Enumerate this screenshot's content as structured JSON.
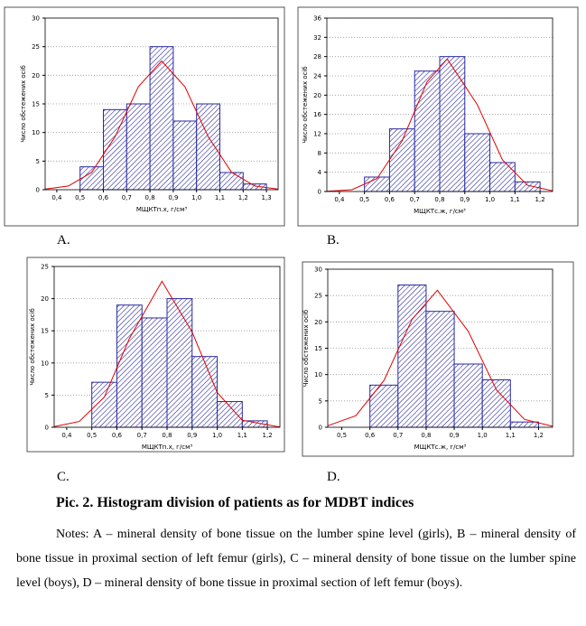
{
  "chart_data": [
    {
      "type": "histogram",
      "label": "A.",
      "ylabel": "Число обстежених осіб",
      "xlabel": "МЩКТп.х, г/см³",
      "bins": [
        0.5,
        0.6,
        0.7,
        0.8,
        0.9,
        1.0,
        1.1,
        1.2,
        1.3
      ],
      "values": [
        4,
        14,
        15,
        25,
        12,
        15,
        3,
        1
      ],
      "color": "#2a2aa0",
      "curve": {
        "color": "#e00000",
        "x": [
          0.35,
          0.45,
          0.55,
          0.65,
          0.75,
          0.85,
          0.95,
          1.05,
          1.15,
          1.25,
          1.35
        ],
        "y": [
          0.09,
          0.64,
          3.05,
          9.25,
          18.0,
          22.5,
          18.0,
          9.25,
          3.05,
          0.64,
          0.09
        ]
      },
      "xlim": [
        0.35,
        1.35
      ],
      "ylim": [
        0,
        30
      ],
      "xticks": [
        {
          "value": 0.4,
          "label": "0,4"
        },
        {
          "value": 0.5,
          "label": "0,5"
        },
        {
          "value": 0.6,
          "label": "0,6"
        },
        {
          "value": 0.7,
          "label": "0,7"
        },
        {
          "value": 0.8,
          "label": "0,8"
        },
        {
          "value": 0.9,
          "label": "0,9"
        },
        {
          "value": 1.0,
          "label": "1,0"
        },
        {
          "value": 1.1,
          "label": "1,1"
        },
        {
          "value": 1.2,
          "label": "1,2"
        },
        {
          "value": 1.3,
          "label": "1,3"
        }
      ],
      "yticks": [
        0,
        5,
        10,
        15,
        20,
        25,
        30
      ],
      "grid": true
    },
    {
      "type": "histogram",
      "label": "B.",
      "ylabel": "Число обстежених осіб",
      "xlabel": "МЩКТс.ж, г/см³",
      "bins": [
        0.5,
        0.6,
        0.7,
        0.8,
        0.9,
        1.0,
        1.1,
        1.2
      ],
      "values": [
        3,
        13,
        25,
        28,
        12,
        6,
        2
      ],
      "color": "#2a2aa0",
      "curve": {
        "color": "#e00000",
        "x": [
          0.35,
          0.45,
          0.55,
          0.65,
          0.75,
          0.83,
          0.95,
          1.05,
          1.15,
          1.25
        ],
        "y": [
          0.03,
          0.38,
          2.7,
          10.5,
          22.8,
          27.5,
          18.0,
          6.6,
          1.3,
          0.15
        ]
      },
      "xlim": [
        0.35,
        1.25
      ],
      "ylim": [
        0,
        36
      ],
      "xticks": [
        {
          "value": 0.4,
          "label": "0,4"
        },
        {
          "value": 0.5,
          "label": "0,5"
        },
        {
          "value": 0.6,
          "label": "0,6"
        },
        {
          "value": 0.7,
          "label": "0,7"
        },
        {
          "value": 0.8,
          "label": "0,8"
        },
        {
          "value": 0.9,
          "label": "0,9"
        },
        {
          "value": 1.0,
          "label": "1,0"
        },
        {
          "value": 1.1,
          "label": "1,1"
        },
        {
          "value": 1.2,
          "label": "1,2"
        }
      ],
      "yticks": [
        0,
        4,
        8,
        12,
        16,
        20,
        24,
        28,
        32,
        36
      ],
      "grid": true
    },
    {
      "type": "histogram",
      "label": "C.",
      "ylabel": "Число обстежених осіб",
      "xlabel": "МЩКТп.х, г/см³",
      "bins": [
        0.5,
        0.6,
        0.7,
        0.8,
        0.9,
        1.0,
        1.1,
        1.2
      ],
      "values": [
        7,
        19,
        17,
        20,
        11,
        4,
        1
      ],
      "color": "#2a2aa0",
      "curve": {
        "color": "#e00000",
        "x": [
          0.35,
          0.45,
          0.55,
          0.65,
          0.78,
          0.9,
          1.0,
          1.1,
          1.25
        ],
        "y": [
          0.1,
          0.9,
          4.7,
          13.8,
          22.7,
          14.8,
          5.4,
          1.1,
          0.03
        ]
      },
      "xlim": [
        0.35,
        1.25
      ],
      "ylim": [
        0,
        25
      ],
      "xticks": [
        {
          "value": 0.4,
          "label": "0,4"
        },
        {
          "value": 0.5,
          "label": "0,5"
        },
        {
          "value": 0.6,
          "label": "0,6"
        },
        {
          "value": 0.7,
          "label": "0,7"
        },
        {
          "value": 0.8,
          "label": "0,8"
        },
        {
          "value": 0.9,
          "label": "0,9"
        },
        {
          "value": 1.0,
          "label": "1,0"
        },
        {
          "value": 1.1,
          "label": "1,1"
        },
        {
          "value": 1.2,
          "label": "1,2"
        }
      ],
      "yticks": [
        0,
        5,
        10,
        15,
        20,
        25
      ],
      "grid": true
    },
    {
      "type": "histogram",
      "label": "D.",
      "ylabel": "Число обстежених осіб",
      "xlabel": "МЩКТс.ж, г/см³",
      "bins": [
        0.6,
        0.7,
        0.8,
        0.9,
        1.0,
        1.1,
        1.2
      ],
      "values": [
        8,
        27,
        22,
        12,
        9,
        1
      ],
      "color": "#2a2aa0",
      "curve": {
        "color": "#e00000",
        "x": [
          0.45,
          0.55,
          0.65,
          0.75,
          0.84,
          0.95,
          1.05,
          1.15,
          1.25
        ],
        "y": [
          0.29,
          2.2,
          8.9,
          20.5,
          26,
          18.2,
          7.1,
          1.5,
          0.18
        ]
      },
      "xlim": [
        0.45,
        1.25
      ],
      "ylim": [
        0,
        30
      ],
      "xticks": [
        {
          "value": 0.5,
          "label": "0,5"
        },
        {
          "value": 0.6,
          "label": "0,6"
        },
        {
          "value": 0.7,
          "label": "0,7"
        },
        {
          "value": 0.8,
          "label": "0,8"
        },
        {
          "value": 0.9,
          "label": "0,9"
        },
        {
          "value": 1.0,
          "label": "1,0"
        },
        {
          "value": 1.1,
          "label": "1,1"
        },
        {
          "value": 1.2,
          "label": "1,2"
        }
      ],
      "yticks": [
        0,
        5,
        10,
        15,
        20,
        25,
        30
      ],
      "grid": true
    }
  ],
  "caption": "Pic. 2. Histogram division of patients as for MDBT indices",
  "notes": "Notes: A – mineral density of bone tissue on the lumber spine level (girls), B – mineral density of bone tissue in proximal section of left femur (girls), C – mineral density of bone tissue on the lumber spine level (boys), D – mineral density of bone tissue in proximal section of left femur (boys)."
}
